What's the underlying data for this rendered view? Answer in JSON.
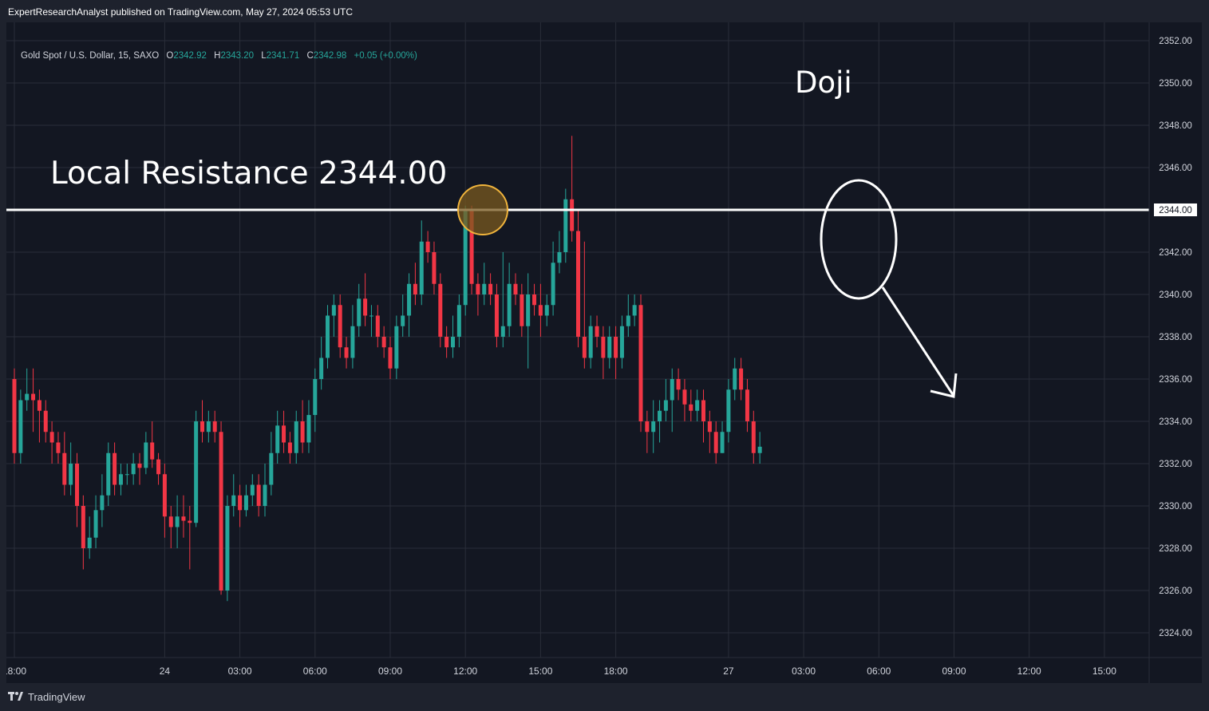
{
  "header": {
    "publish_line": "ExpertResearchAnalyst published on TradingView.com, May 27, 2024 05:53 UTC"
  },
  "legend": {
    "symbol": "Gold Spot / U.S. Dollar, 15, SAXO",
    "open_label": "O",
    "open": "2342.92",
    "high_label": "H",
    "high": "2343.20",
    "low_label": "L",
    "low": "2341.71",
    "close_label": "C",
    "close": "2342.98",
    "change": "+0.05 (+0.00%)"
  },
  "footer": {
    "brand": "TradingView"
  },
  "colors": {
    "background": "#131722",
    "frame": "#1e222d",
    "grid": "#2a2e39",
    "up": "#26a69a",
    "down": "#f23645",
    "text": "#d1d4dc",
    "annotation": "#ffffff",
    "highlight_fill": "#7a5a1f",
    "highlight_stroke": "#f0b43c"
  },
  "chart_data": {
    "type": "candlestick",
    "symbol": "Gold Spot / U.S. Dollar",
    "interval": "15",
    "ylim": [
      2323,
      2353
    ],
    "y_ticks": [
      "2324.00",
      "2326.00",
      "2328.00",
      "2330.00",
      "2332.00",
      "2334.00",
      "2336.00",
      "2338.00",
      "2340.00",
      "2342.00",
      "2344.00",
      "2346.00",
      "2348.00",
      "2350.00",
      "2352.00"
    ],
    "x_ticks": [
      {
        "label": "18:00",
        "bar": 0
      },
      {
        "label": "24",
        "bar": 24
      },
      {
        "label": "03:00",
        "bar": 36
      },
      {
        "label": "06:00",
        "bar": 48
      },
      {
        "label": "09:00",
        "bar": 60
      },
      {
        "label": "12:00",
        "bar": 72
      },
      {
        "label": "15:00",
        "bar": 84
      },
      {
        "label": "18:00",
        "bar": 96
      },
      {
        "label": "27",
        "bar": 114
      },
      {
        "label": "03:00",
        "bar": 126
      },
      {
        "label": "06:00",
        "bar": 138
      },
      {
        "label": "09:00",
        "bar": 150
      },
      {
        "label": "12:00",
        "bar": 162
      },
      {
        "label": "15:00",
        "bar": 174
      }
    ],
    "grid": true,
    "candles": [
      [
        2336.0,
        2332.5,
        2336.5,
        2332.0
      ],
      [
        2332.5,
        2335.0,
        2335.5,
        2332.0
      ],
      [
        2335.0,
        2335.3,
        2336.5,
        2334.5
      ],
      [
        2335.3,
        2335.0,
        2336.5,
        2333.5
      ],
      [
        2335.0,
        2334.5,
        2335.5,
        2333.0
      ],
      [
        2334.5,
        2333.5,
        2335.0,
        2333.0
      ],
      [
        2333.5,
        2333.0,
        2334.0,
        2332.0
      ],
      [
        2333.0,
        2332.5,
        2333.5,
        2332.0
      ],
      [
        2332.5,
        2331.0,
        2333.5,
        2330.5
      ],
      [
        2331.0,
        2332.0,
        2333.0,
        2330.5
      ],
      [
        2332.0,
        2330.0,
        2332.5,
        2329.0
      ],
      [
        2330.0,
        2328.0,
        2330.5,
        2327.0
      ],
      [
        2328.0,
        2328.5,
        2329.5,
        2327.5
      ],
      [
        2328.5,
        2329.8,
        2330.5,
        2328.0
      ],
      [
        2329.8,
        2330.5,
        2331.5,
        2329.0
      ],
      [
        2330.5,
        2332.5,
        2333.0,
        2330.0
      ],
      [
        2332.5,
        2331.0,
        2333.0,
        2330.5
      ],
      [
        2331.0,
        2331.5,
        2332.0,
        2330.5
      ],
      [
        2331.5,
        2331.5,
        2332.0,
        2331.0
      ],
      [
        2331.5,
        2332.0,
        2332.5,
        2331.0
      ],
      [
        2332.0,
        2331.8,
        2332.5,
        2331.0
      ],
      [
        2331.8,
        2333.0,
        2333.5,
        2331.5
      ],
      [
        2333.0,
        2332.2,
        2334.0,
        2331.8
      ],
      [
        2332.2,
        2331.5,
        2332.5,
        2331.0
      ],
      [
        2331.5,
        2329.5,
        2332.0,
        2328.5
      ],
      [
        2329.5,
        2329.0,
        2330.0,
        2328.0
      ],
      [
        2329.0,
        2329.5,
        2330.5,
        2328.0
      ],
      [
        2329.5,
        2329.3,
        2330.5,
        2328.5
      ],
      [
        2329.3,
        2329.2,
        2330.0,
        2327.0
      ],
      [
        2329.2,
        2334.0,
        2334.5,
        2329.0
      ],
      [
        2334.0,
        2333.5,
        2335.0,
        2333.0
      ],
      [
        2333.5,
        2334.0,
        2334.5,
        2333.0
      ],
      [
        2334.0,
        2333.5,
        2334.5,
        2333.0
      ],
      [
        2333.5,
        2326.0,
        2334.0,
        2325.8
      ],
      [
        2326.0,
        2330.0,
        2330.5,
        2325.5
      ],
      [
        2330.0,
        2330.5,
        2331.5,
        2329.5
      ],
      [
        2330.5,
        2329.8,
        2331.0,
        2329.0
      ],
      [
        2329.8,
        2330.5,
        2331.0,
        2329.5
      ],
      [
        2330.5,
        2331.0,
        2331.5,
        2330.0
      ],
      [
        2331.0,
        2330.0,
        2331.5,
        2329.5
      ],
      [
        2330.0,
        2331.0,
        2332.0,
        2329.5
      ],
      [
        2331.0,
        2332.5,
        2333.5,
        2330.5
      ],
      [
        2332.5,
        2333.8,
        2334.5,
        2332.0
      ],
      [
        2333.8,
        2333.0,
        2334.5,
        2332.5
      ],
      [
        2333.0,
        2332.5,
        2333.5,
        2332.0
      ],
      [
        2332.5,
        2334.0,
        2334.5,
        2332.0
      ],
      [
        2334.0,
        2333.0,
        2335.0,
        2332.5
      ],
      [
        2333.0,
        2334.3,
        2335.0,
        2332.5
      ],
      [
        2334.3,
        2336.0,
        2336.5,
        2333.5
      ],
      [
        2336.0,
        2337.0,
        2338.0,
        2335.5
      ],
      [
        2337.0,
        2339.0,
        2339.5,
        2336.5
      ],
      [
        2339.0,
        2339.5,
        2340.0,
        2338.0
      ],
      [
        2339.5,
        2337.5,
        2340.0,
        2337.0
      ],
      [
        2337.5,
        2337.0,
        2338.0,
        2336.5
      ],
      [
        2337.0,
        2338.5,
        2339.5,
        2336.5
      ],
      [
        2338.5,
        2339.8,
        2340.5,
        2338.0
      ],
      [
        2339.8,
        2339.0,
        2341.0,
        2338.5
      ],
      [
        2339.0,
        2339.0,
        2339.5,
        2338.0
      ],
      [
        2339.0,
        2338.0,
        2339.5,
        2337.5
      ],
      [
        2338.0,
        2337.5,
        2338.5,
        2337.0
      ],
      [
        2337.5,
        2336.5,
        2338.0,
        2336.0
      ],
      [
        2336.5,
        2338.5,
        2339.0,
        2336.0
      ],
      [
        2338.5,
        2339.0,
        2340.0,
        2338.0
      ],
      [
        2339.0,
        2340.5,
        2341.0,
        2338.0
      ],
      [
        2340.5,
        2340.0,
        2341.5,
        2339.5
      ],
      [
        2340.0,
        2342.5,
        2343.5,
        2339.5
      ],
      [
        2342.5,
        2342.0,
        2343.0,
        2341.5
      ],
      [
        2342.0,
        2340.5,
        2342.5,
        2340.0
      ],
      [
        2340.5,
        2338.0,
        2341.0,
        2337.5
      ],
      [
        2338.0,
        2337.5,
        2338.5,
        2337.0
      ],
      [
        2337.5,
        2338.0,
        2339.0,
        2337.0
      ],
      [
        2338.0,
        2339.5,
        2340.0,
        2337.5
      ],
      [
        2339.5,
        2344.0,
        2344.2,
        2339.0
      ],
      [
        2344.0,
        2340.5,
        2344.2,
        2340.0
      ],
      [
        2340.5,
        2340.0,
        2341.0,
        2339.0
      ],
      [
        2340.0,
        2340.5,
        2341.5,
        2339.5
      ],
      [
        2340.5,
        2340.0,
        2341.0,
        2339.5
      ],
      [
        2340.0,
        2338.0,
        2340.5,
        2337.5
      ],
      [
        2338.0,
        2338.5,
        2342.0,
        2337.5
      ],
      [
        2338.5,
        2340.5,
        2341.5,
        2338.0
      ],
      [
        2340.5,
        2340.0,
        2341.0,
        2339.5
      ],
      [
        2340.0,
        2338.5,
        2340.5,
        2338.0
      ],
      [
        2338.5,
        2340.0,
        2341.0,
        2336.5
      ],
      [
        2340.0,
        2339.5,
        2340.5,
        2339.0
      ],
      [
        2339.5,
        2339.0,
        2340.5,
        2338.0
      ],
      [
        2339.0,
        2339.5,
        2340.0,
        2338.5
      ],
      [
        2339.5,
        2341.5,
        2342.5,
        2339.0
      ],
      [
        2341.5,
        2342.0,
        2343.0,
        2341.0
      ],
      [
        2342.0,
        2344.5,
        2345.0,
        2341.5
      ],
      [
        2344.5,
        2343.0,
        2347.5,
        2342.5
      ],
      [
        2343.0,
        2338.0,
        2344.0,
        2337.5
      ],
      [
        2338.0,
        2337.0,
        2342.5,
        2336.5
      ],
      [
        2337.0,
        2338.5,
        2339.0,
        2336.5
      ],
      [
        2338.5,
        2338.0,
        2339.0,
        2337.5
      ],
      [
        2338.0,
        2337.0,
        2338.5,
        2336.0
      ],
      [
        2337.0,
        2338.0,
        2338.5,
        2336.5
      ],
      [
        2338.0,
        2337.0,
        2338.5,
        2336.0
      ],
      [
        2337.0,
        2338.5,
        2339.0,
        2336.5
      ],
      [
        2338.5,
        2339.0,
        2340.0,
        2338.0
      ],
      [
        2339.0,
        2339.5,
        2340.0,
        2338.5
      ],
      [
        2339.5,
        2334.0,
        2340.0,
        2333.5
      ],
      [
        2334.0,
        2333.5,
        2334.5,
        2332.5
      ],
      [
        2333.5,
        2334.0,
        2335.0,
        2332.5
      ],
      [
        2334.0,
        2334.5,
        2335.0,
        2333.0
      ],
      [
        2334.5,
        2335.0,
        2336.0,
        2334.0
      ],
      [
        2335.0,
        2336.0,
        2336.5,
        2333.5
      ],
      [
        2336.0,
        2335.5,
        2336.5,
        2335.0
      ],
      [
        2335.5,
        2334.8,
        2336.0,
        2334.0
      ],
      [
        2334.8,
        2334.5,
        2335.5,
        2334.0
      ],
      [
        2334.5,
        2335.0,
        2335.5,
        2334.0
      ],
      [
        2335.0,
        2334.0,
        2335.5,
        2333.0
      ],
      [
        2334.0,
        2333.5,
        2334.5,
        2332.5
      ],
      [
        2333.5,
        2332.5,
        2334.0,
        2332.0
      ],
      [
        2332.5,
        2333.5,
        2334.0,
        2332.5
      ],
      [
        2333.5,
        2335.5,
        2336.0,
        2333.0
      ],
      [
        2335.5,
        2336.5,
        2337.0,
        2335.0
      ],
      [
        2336.5,
        2335.5,
        2337.0,
        2335.0
      ],
      [
        2335.5,
        2334.0,
        2336.0,
        2333.5
      ],
      [
        2334.0,
        2332.5,
        2334.5,
        2332.0
      ],
      [
        2332.5,
        2332.8,
        2333.5,
        2332.0
      ]
    ],
    "reference_price": "2344.00",
    "annotations": [
      {
        "type": "horizontal-line",
        "price": 2344.0
      },
      {
        "type": "text",
        "text": "Local Resistance 2344.00"
      },
      {
        "type": "text",
        "text": "Doji"
      },
      {
        "type": "circle",
        "label": "breakout-rejection-highlight"
      },
      {
        "type": "ellipse",
        "label": "doji-highlight"
      },
      {
        "type": "arrow",
        "direction": "down-right"
      }
    ]
  }
}
